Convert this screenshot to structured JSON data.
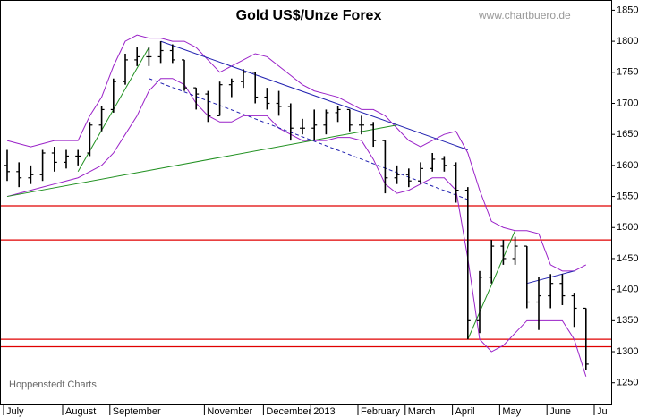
{
  "chart_data": {
    "type": "ohlc",
    "title": "Gold US$/Unze Forex",
    "source": "www.chartbuero.de",
    "footer": "Hoppenstedt Charts",
    "categories": [
      "July",
      null,
      null,
      null,
      null,
      "August",
      null,
      null,
      null,
      "September",
      null,
      null,
      null,
      null,
      null,
      null,
      null,
      "November",
      null,
      null,
      null,
      null,
      "December",
      null,
      null,
      null,
      "2013",
      null,
      null,
      null,
      "February",
      null,
      null,
      null,
      "March",
      null,
      null,
      null,
      "April",
      null,
      null,
      null,
      "May",
      null,
      null,
      null,
      "June",
      null,
      null,
      null,
      "Ju"
    ],
    "open": [
      1600,
      1590,
      1580,
      1585,
      1620,
      1605,
      1615,
      1620,
      1665,
      1690,
      1735,
      1770,
      1775,
      1775,
      1785,
      1770,
      1725,
      1715,
      1680,
      1730,
      1735,
      1750,
      1710,
      1700,
      1695,
      1660,
      1660,
      1665,
      1685,
      1690,
      1665,
      1665,
      1640,
      1580,
      1585,
      1575,
      1595,
      1610,
      1600,
      1560,
      1350,
      1420,
      1470,
      1450,
      1470,
      1380,
      1390,
      1410,
      1390,
      1370,
      null
    ],
    "high": [
      1625,
      1605,
      1600,
      1625,
      1630,
      1625,
      1625,
      1670,
      1695,
      1740,
      1780,
      1790,
      1790,
      1800,
      1795,
      1770,
      1725,
      1720,
      1735,
      1740,
      1755,
      1750,
      1725,
      1720,
      1700,
      1675,
      1690,
      1690,
      1695,
      1690,
      1680,
      1670,
      1640,
      1600,
      1595,
      1605,
      1620,
      1615,
      1605,
      1565,
      1430,
      1480,
      1480,
      1485,
      1470,
      1420,
      1425,
      1425,
      1395,
      1370,
      null
    ],
    "low": [
      1575,
      1565,
      1570,
      1575,
      1590,
      1595,
      1600,
      1615,
      1655,
      1685,
      1730,
      1760,
      1760,
      1765,
      1765,
      1720,
      1690,
      1670,
      1680,
      1710,
      1725,
      1700,
      1690,
      1680,
      1640,
      1650,
      1640,
      1650,
      1670,
      1655,
      1650,
      1630,
      1555,
      1570,
      1565,
      1570,
      1590,
      1590,
      1540,
      1320,
      1330,
      1410,
      1440,
      1440,
      1370,
      1335,
      1370,
      1375,
      1340,
      1270,
      null
    ],
    "close": [
      1590,
      1580,
      1585,
      1620,
      1605,
      1615,
      1615,
      1665,
      1690,
      1735,
      1770,
      1775,
      1775,
      1785,
      1770,
      1725,
      1715,
      1680,
      1730,
      1735,
      1750,
      1710,
      1700,
      1695,
      1660,
      1660,
      1665,
      1685,
      1690,
      1665,
      1665,
      1640,
      1580,
      1585,
      1575,
      1595,
      1610,
      1600,
      1560,
      1350,
      1420,
      1470,
      1450,
      1470,
      1380,
      1390,
      1410,
      1390,
      1370,
      1280,
      null
    ],
    "bar_color": "#000000",
    "bands": {
      "color": "#9a22c8",
      "upper": [
        1640,
        1635,
        1630,
        1635,
        1640,
        1640,
        1640,
        1680,
        1710,
        1760,
        1800,
        1810,
        1805,
        1805,
        1800,
        1800,
        1790,
        1770,
        1750,
        1760,
        1770,
        1780,
        1775,
        1760,
        1745,
        1730,
        1720,
        1715,
        1710,
        1700,
        1690,
        1690,
        1680,
        1660,
        1640,
        1630,
        1640,
        1650,
        1655,
        1620,
        1560,
        1510,
        1500,
        1495,
        1495,
        1490,
        1440,
        1430,
        1430,
        1440,
        null
      ],
      "lower": [
        1550,
        1555,
        1560,
        1565,
        1570,
        1575,
        1580,
        1590,
        1600,
        1620,
        1650,
        1680,
        1720,
        1740,
        1740,
        1730,
        1700,
        1680,
        1670,
        1670,
        1680,
        1680,
        1680,
        1660,
        1650,
        1640,
        1640,
        1640,
        1645,
        1645,
        1640,
        1610,
        1570,
        1555,
        1560,
        1570,
        1580,
        1580,
        1560,
        1450,
        1320,
        1300,
        1310,
        1330,
        1350,
        1350,
        1350,
        1350,
        1320,
        1260,
        null
      ]
    },
    "levels": [
      1535,
      1480,
      1320,
      1308
    ],
    "level_color": "#e00000",
    "trendlines": [
      {
        "color": "#2020b0",
        "dashed": false,
        "points": [
          [
            13,
            1800
          ],
          [
            39,
            1625
          ]
        ]
      },
      {
        "color": "#2020b0",
        "dashed": true,
        "points": [
          [
            12,
            1740
          ],
          [
            39,
            1545
          ]
        ]
      },
      {
        "color": "#209020",
        "dashed": false,
        "points": [
          [
            0,
            1550
          ],
          [
            33,
            1665
          ]
        ]
      },
      {
        "color": "#209020",
        "dashed": false,
        "points": [
          [
            6,
            1590
          ],
          [
            12,
            1790
          ]
        ]
      },
      {
        "color": "#209020",
        "dashed": false,
        "points": [
          [
            39,
            1320
          ],
          [
            43,
            1495
          ]
        ]
      },
      {
        "color": "#2020b0",
        "dashed": false,
        "points": [
          [
            44,
            1410
          ],
          [
            48,
            1430
          ]
        ]
      }
    ],
    "ylim": [
      1215,
      1865
    ],
    "yticks": [
      1250,
      1300,
      1350,
      1400,
      1450,
      1500,
      1550,
      1600,
      1650,
      1700,
      1750,
      1800,
      1850
    ]
  }
}
